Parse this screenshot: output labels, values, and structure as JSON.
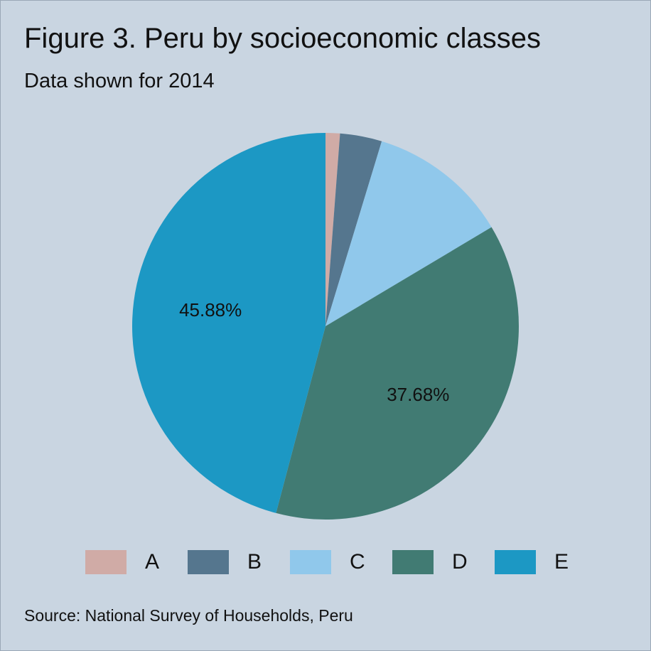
{
  "title": "Figure 3. Peru by socioeconomic classes",
  "subtitle": "Data shown for 2014",
  "source": "Source: National Survey of Households, Peru",
  "chart_data": {
    "type": "pie",
    "categories": [
      "A",
      "B",
      "C",
      "D",
      "E"
    ],
    "values": [
      1.2,
      3.5,
      11.74,
      37.68,
      45.88
    ],
    "colors": [
      "#d0aba6",
      "#55768e",
      "#90c8eb",
      "#417b73",
      "#1c98c4"
    ],
    "data_labels": [
      "",
      "",
      "",
      "37.68%",
      "45.88%"
    ],
    "start_angle": "12 o'clock, clockwise",
    "legend_position": "bottom"
  }
}
